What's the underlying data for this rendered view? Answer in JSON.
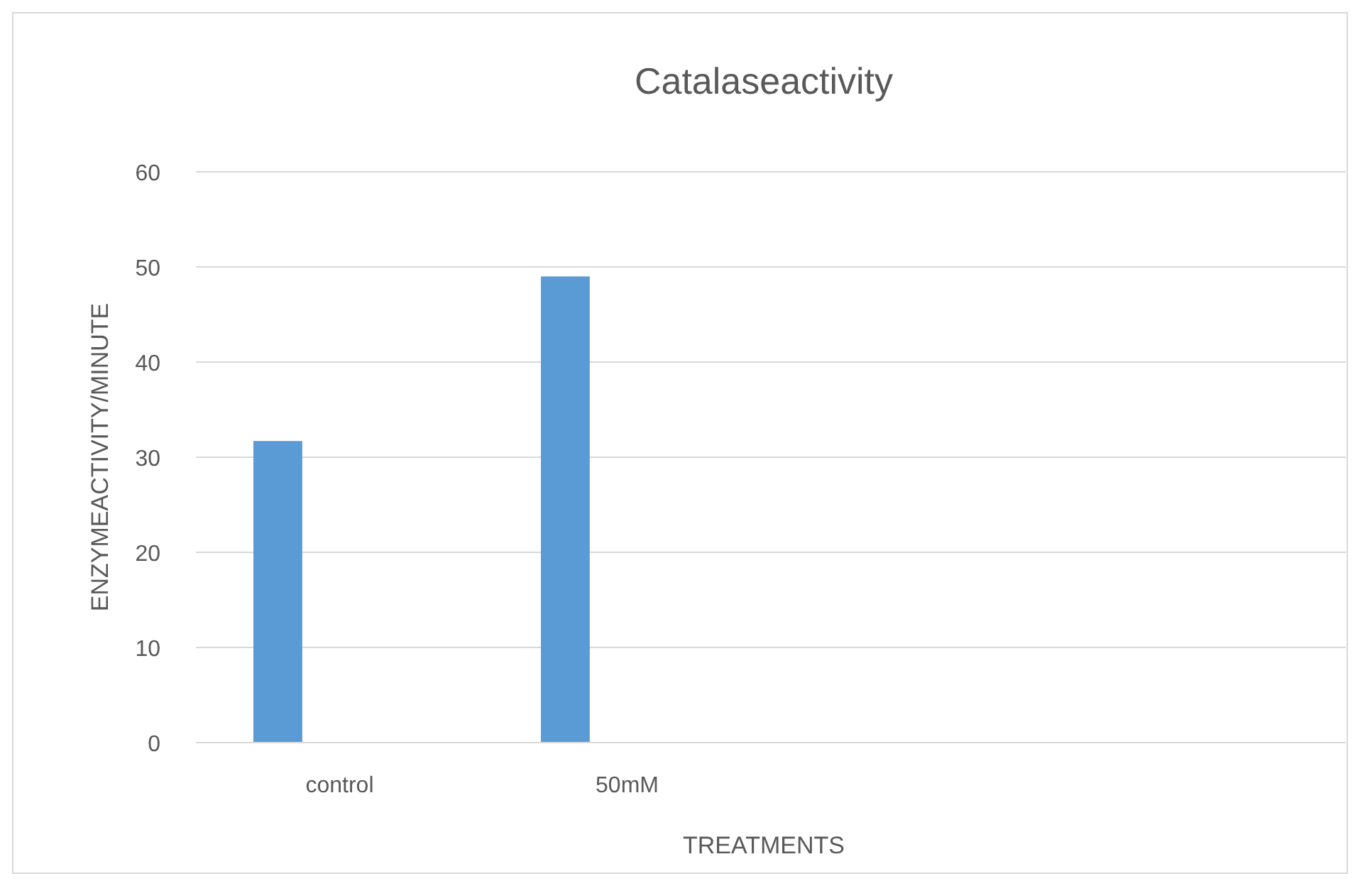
{
  "chart_data": {
    "type": "bar",
    "title": "Catalaseactivity",
    "xlabel": "TREATMENTS",
    "ylabel": "ENZYMEACTIVITY/MINUTE",
    "categories": [
      "control",
      "50mM",
      null,
      null
    ],
    "series": [
      {
        "color": "#5b9bd5",
        "values": [
          31.7,
          49,
          null,
          null
        ]
      }
    ],
    "ylim": [
      0,
      60
    ],
    "yticks": [
      0,
      10,
      20,
      30,
      40,
      50,
      60
    ],
    "grid": "y"
  }
}
